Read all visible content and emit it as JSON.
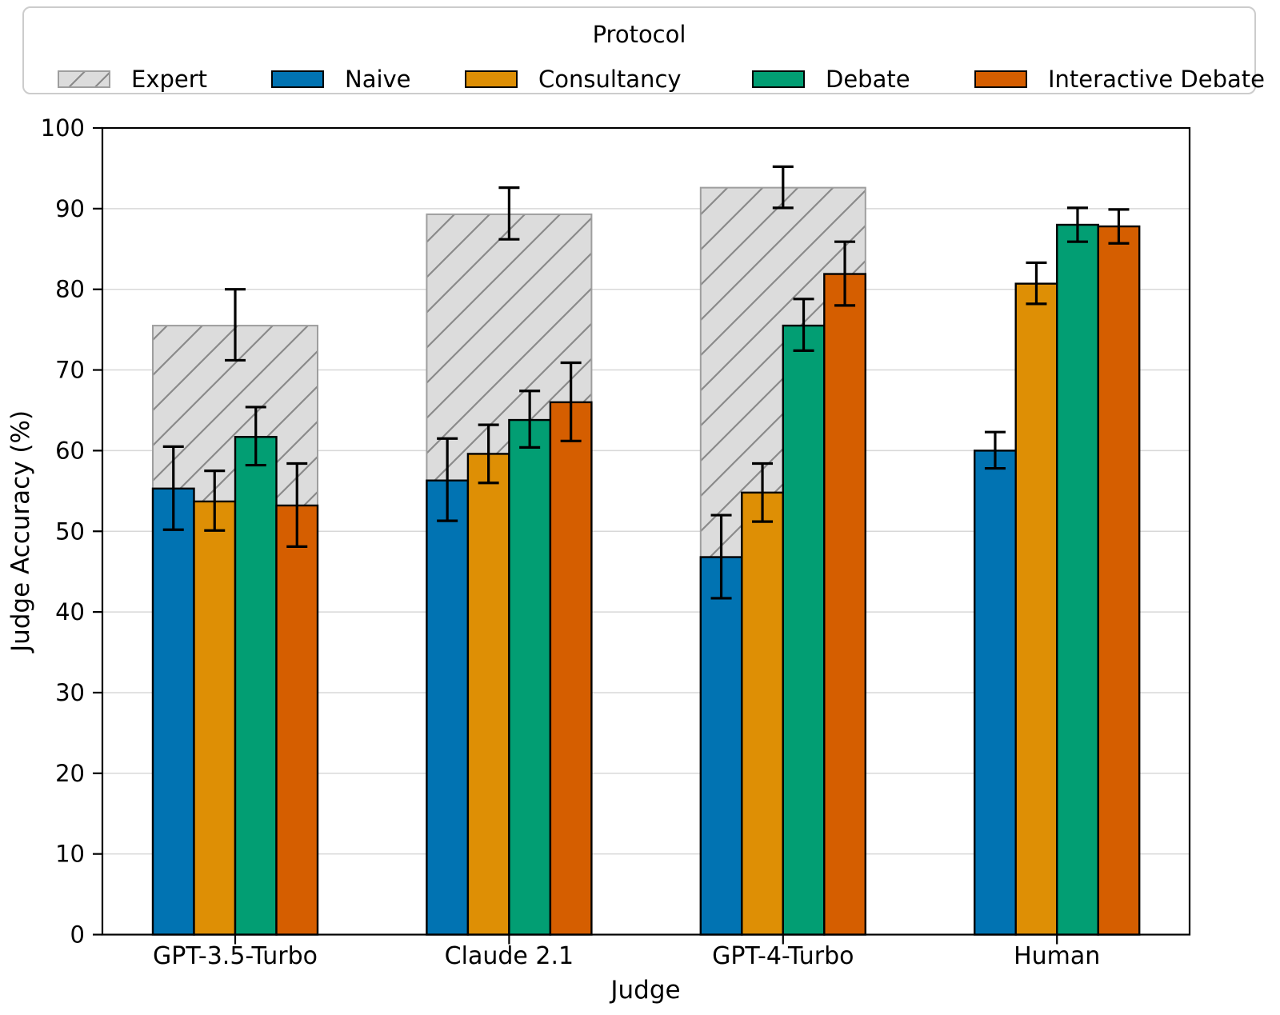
{
  "chart_data": {
    "type": "bar",
    "title": "",
    "xlabel": "Judge",
    "ylabel": "Judge Accuracy (%)",
    "ylim": [
      0,
      100
    ],
    "yticks": [
      0,
      10,
      20,
      30,
      40,
      50,
      60,
      70,
      80,
      90,
      100
    ],
    "grid": "horizontal",
    "categories": [
      "GPT-3.5-Turbo",
      "Claude 2.1",
      "GPT-4-Turbo",
      "Human"
    ],
    "legend": {
      "title": "Protocol",
      "position": "top",
      "entries": [
        "Expert",
        "Naive",
        "Consultancy",
        "Debate",
        "Interactive Debate"
      ]
    },
    "expert_overlay": {
      "name": "Expert",
      "fill": "#dcdcdc",
      "hatch": "/",
      "hatch_color": "#8a8a8a",
      "edge_color": "#9e9e9e",
      "values": [
        75.5,
        89.3,
        92.6,
        null
      ],
      "err_low": [
        71.2,
        86.2,
        90.1,
        null
      ],
      "err_high": [
        80.0,
        92.6,
        95.2,
        null
      ]
    },
    "series": [
      {
        "name": "Naive",
        "color": "#0173B2",
        "values": [
          55.3,
          56.3,
          46.8,
          60.0
        ],
        "err_low": [
          50.2,
          51.3,
          41.7,
          57.8
        ],
        "err_high": [
          60.5,
          61.5,
          52.0,
          62.3
        ]
      },
      {
        "name": "Consultancy",
        "color": "#DE8F05",
        "values": [
          53.7,
          59.6,
          54.8,
          80.7
        ],
        "err_low": [
          50.1,
          56.0,
          51.2,
          78.2
        ],
        "err_high": [
          57.5,
          63.2,
          58.4,
          83.3
        ]
      },
      {
        "name": "Debate",
        "color": "#029E73",
        "values": [
          61.7,
          63.8,
          75.5,
          88.0
        ],
        "err_low": [
          58.2,
          60.4,
          72.4,
          85.9
        ],
        "err_high": [
          65.4,
          67.4,
          78.8,
          90.1
        ]
      },
      {
        "name": "Interactive Debate",
        "color": "#D55E00",
        "values": [
          53.2,
          66.0,
          81.9,
          87.8
        ],
        "err_low": [
          48.1,
          61.2,
          78.0,
          85.7
        ],
        "err_high": [
          58.4,
          70.9,
          85.9,
          89.9
        ]
      }
    ],
    "style": {
      "grid_color": "#d8d8d8",
      "bar_edge_color": "#000000",
      "errorbar_color": "#000000",
      "frame_color": "#000000"
    }
  }
}
